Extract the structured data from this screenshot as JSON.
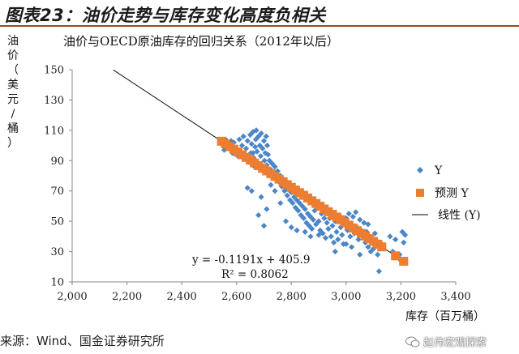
{
  "header": {
    "title": "图表23：油价走势与库存变化高度负相关"
  },
  "source": "来源：Wind、国金证券研究所",
  "watermark": "赵伟宏观探索",
  "chart_data": {
    "type": "scatter",
    "title": "油价与OECD原油库存的回归关系（2012年以后）",
    "ylabel": "油价（美元/桶）",
    "ylabel_chars": [
      "油",
      "价",
      "（",
      "美",
      "元",
      "/",
      "桶",
      "）"
    ],
    "xlabel": "库存（百万桶）",
    "xlim": [
      2000,
      3400
    ],
    "ylim": [
      10,
      150
    ],
    "xticks": [
      2000,
      2200,
      2400,
      2600,
      2800,
      3000,
      3200,
      3400
    ],
    "xtick_labels": [
      "2,000",
      "2,200",
      "2,400",
      "2,600",
      "2,800",
      "3,000",
      "3,200",
      "3,400"
    ],
    "yticks": [
      10,
      30,
      50,
      70,
      90,
      110,
      130,
      150
    ],
    "ytick_labels": [
      "10",
      "30",
      "50",
      "70",
      "90",
      "110",
      "130",
      "150"
    ],
    "equation": "y = -0.1191x + 405.9",
    "r_squared": "R² = 0.8062",
    "legend_position": "right",
    "legend": [
      {
        "label": "Y",
        "marker": "diamond",
        "color": "#4a86c8"
      },
      {
        "label": "预测 Y",
        "marker": "square",
        "color": "#ed7d31"
      },
      {
        "label": "线性 (Y)",
        "marker": "line",
        "color": "#000000"
      }
    ],
    "trendline": {
      "slope": -0.1191,
      "intercept": 405.9,
      "x_range": [
        2150,
        3215
      ]
    },
    "series": [
      {
        "name": "Y",
        "marker": "diamond",
        "color": "#4a86c8",
        "points": [
          [
            2545,
            101
          ],
          [
            2555,
            97
          ],
          [
            2560,
            104
          ],
          [
            2570,
            99
          ],
          [
            2580,
            103
          ],
          [
            2585,
            95
          ],
          [
            2590,
            102
          ],
          [
            2600,
            98
          ],
          [
            2605,
            93
          ],
          [
            2610,
            104
          ],
          [
            2615,
            96
          ],
          [
            2620,
            100
          ],
          [
            2625,
            106
          ],
          [
            2630,
            92
          ],
          [
            2635,
            98
          ],
          [
            2640,
            103
          ],
          [
            2645,
            89
          ],
          [
            2650,
            107
          ],
          [
            2652,
            95
          ],
          [
            2655,
            101
          ],
          [
            2660,
            109
          ],
          [
            2662,
            92
          ],
          [
            2665,
            86
          ],
          [
            2668,
            99
          ],
          [
            2670,
            104
          ],
          [
            2672,
            110
          ],
          [
            2675,
            96
          ],
          [
            2678,
            88
          ],
          [
            2680,
            106
          ],
          [
            2685,
            100
          ],
          [
            2688,
            93
          ],
          [
            2690,
            108
          ],
          [
            2692,
            84
          ],
          [
            2695,
            98
          ],
          [
            2700,
            103
          ],
          [
            2702,
            90
          ],
          [
            2705,
            95
          ],
          [
            2708,
            106
          ],
          [
            2710,
            87
          ],
          [
            2712,
            100
          ],
          [
            2715,
            94
          ],
          [
            2718,
            82
          ],
          [
            2720,
            90
          ],
          [
            2725,
            84
          ],
          [
            2730,
            88
          ],
          [
            2735,
            80
          ],
          [
            2740,
            86
          ],
          [
            2745,
            78
          ],
          [
            2750,
            83
          ],
          [
            2755,
            76
          ],
          [
            2760,
            80
          ],
          [
            2765,
            73
          ],
          [
            2770,
            78
          ],
          [
            2775,
            70
          ],
          [
            2780,
            74
          ],
          [
            2785,
            67
          ],
          [
            2790,
            71
          ],
          [
            2795,
            64
          ],
          [
            2800,
            69
          ],
          [
            2805,
            62
          ],
          [
            2810,
            66
          ],
          [
            2815,
            59
          ],
          [
            2820,
            64
          ],
          [
            2825,
            57
          ],
          [
            2830,
            62
          ],
          [
            2835,
            54
          ],
          [
            2840,
            60
          ],
          [
            2845,
            52
          ],
          [
            2850,
            58
          ],
          [
            2855,
            49
          ],
          [
            2860,
            55
          ],
          [
            2865,
            47
          ],
          [
            2870,
            53
          ],
          [
            2875,
            45
          ],
          [
            2880,
            51
          ],
          [
            2885,
            57
          ],
          [
            2890,
            48
          ],
          [
            2895,
            62
          ],
          [
            2900,
            50
          ],
          [
            2905,
            44
          ],
          [
            2910,
            55
          ],
          [
            2915,
            42
          ],
          [
            2920,
            52
          ],
          [
            2925,
            39
          ],
          [
            2930,
            49
          ],
          [
            2935,
            45
          ],
          [
            2940,
            52
          ],
          [
            2945,
            40
          ],
          [
            2950,
            47
          ],
          [
            2955,
            36
          ],
          [
            2960,
            50
          ],
          [
            2965,
            43
          ],
          [
            2970,
            38
          ],
          [
            2975,
            54
          ],
          [
            2980,
            46
          ],
          [
            2985,
            41
          ],
          [
            2990,
            35
          ],
          [
            2995,
            48
          ],
          [
            3000,
            52
          ],
          [
            3005,
            44
          ],
          [
            3010,
            55
          ],
          [
            3015,
            40
          ],
          [
            3020,
            47
          ],
          [
            3025,
            53
          ],
          [
            3030,
            42
          ],
          [
            3035,
            56
          ],
          [
            3040,
            46
          ],
          [
            3045,
            38
          ],
          [
            3050,
            51
          ],
          [
            3055,
            44
          ],
          [
            3060,
            40
          ],
          [
            3065,
            49
          ],
          [
            3070,
            36
          ],
          [
            3075,
            43
          ],
          [
            3080,
            33
          ],
          [
            3085,
            40
          ],
          [
            3090,
            30
          ],
          [
            3095,
            37
          ],
          [
            3100,
            32
          ],
          [
            3105,
            42
          ],
          [
            3115,
            28
          ],
          [
            3120,
            17
          ],
          [
            3130,
            35
          ],
          [
            3160,
            40
          ],
          [
            3170,
            30
          ],
          [
            3180,
            38
          ],
          [
            3195,
            28
          ],
          [
            3205,
            43
          ],
          [
            3210,
            36
          ],
          [
            3215,
            41
          ],
          [
            3200,
            24
          ],
          [
            2680,
            54
          ],
          [
            2700,
            47
          ],
          [
            2710,
            58
          ],
          [
            2740,
            70
          ],
          [
            2760,
            62
          ],
          [
            2820,
            44
          ],
          [
            2850,
            43
          ],
          [
            2870,
            40
          ],
          [
            2900,
            41
          ],
          [
            2960,
            30
          ],
          [
            3000,
            35
          ],
          [
            3020,
            33
          ],
          [
            3050,
            28
          ],
          [
            3080,
            48
          ],
          [
            2640,
            72
          ],
          [
            2655,
            70
          ],
          [
            2690,
            66
          ],
          [
            2725,
            74
          ],
          [
            2780,
            50
          ],
          [
            2800,
            46
          ],
          [
            2660,
            95
          ]
        ]
      },
      {
        "name": "预测 Y",
        "marker": "square",
        "color": "#ed7d31",
        "points": [
          [
            2545,
            102.8
          ],
          [
            2560,
            101.0
          ],
          [
            2575,
            99.2
          ],
          [
            2590,
            97.5
          ],
          [
            2605,
            95.7
          ],
          [
            2620,
            93.9
          ],
          [
            2635,
            92.1
          ],
          [
            2650,
            90.3
          ],
          [
            2665,
            88.5
          ],
          [
            2680,
            86.7
          ],
          [
            2695,
            84.9
          ],
          [
            2710,
            83.2
          ],
          [
            2725,
            81.4
          ],
          [
            2740,
            79.6
          ],
          [
            2755,
            77.8
          ],
          [
            2770,
            76.0
          ],
          [
            2785,
            74.2
          ],
          [
            2800,
            72.4
          ],
          [
            2815,
            70.6
          ],
          [
            2830,
            68.9
          ],
          [
            2845,
            67.1
          ],
          [
            2860,
            65.3
          ],
          [
            2875,
            63.5
          ],
          [
            2890,
            61.7
          ],
          [
            2905,
            59.9
          ],
          [
            2920,
            58.1
          ],
          [
            2935,
            56.3
          ],
          [
            2950,
            54.6
          ],
          [
            2965,
            52.8
          ],
          [
            2980,
            51.0
          ],
          [
            2995,
            49.2
          ],
          [
            3010,
            47.4
          ],
          [
            3025,
            45.6
          ],
          [
            3040,
            43.8
          ],
          [
            3055,
            42.0
          ],
          [
            3070,
            40.3
          ],
          [
            3085,
            38.5
          ],
          [
            3100,
            36.7
          ],
          [
            3115,
            34.9
          ],
          [
            3130,
            33.1
          ],
          [
            3180,
            27.2
          ],
          [
            3210,
            23.6
          ]
        ]
      }
    ]
  }
}
